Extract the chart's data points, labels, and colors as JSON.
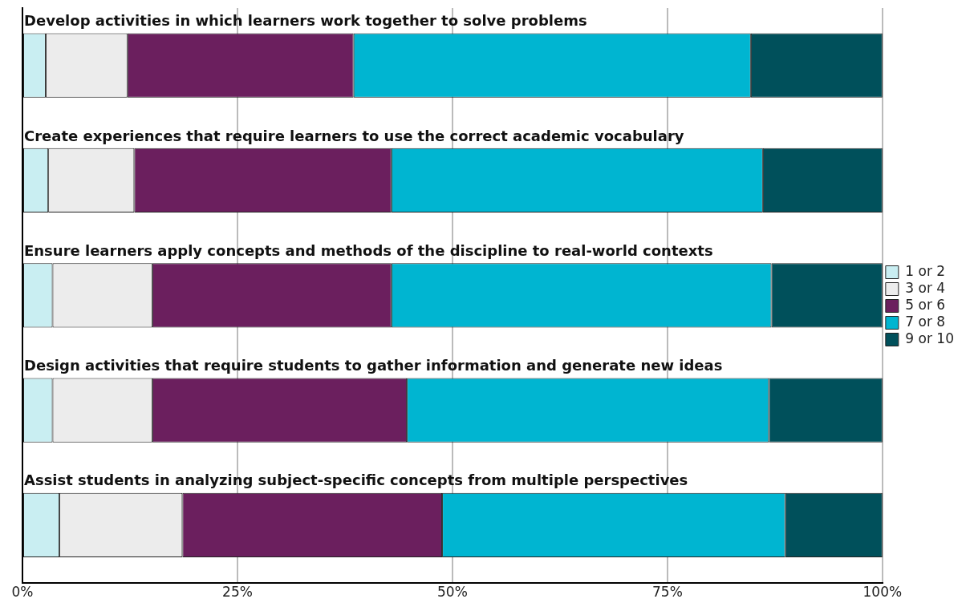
{
  "chart_data": {
    "type": "bar",
    "orientation": "horizontal",
    "stacked": true,
    "categories": [
      "Develop activities in which learners work together to solve problems",
      "Create experiences that require learners to use the correct academic vocabulary",
      "Ensure learners apply concepts and methods of the discipline to real-world contexts",
      "Design activities that require students to gather information and generate new ideas",
      "Assist students in analyzing subject-specific concepts from multiple perspectives"
    ],
    "series": [
      {
        "name": "1 or 2",
        "color": "#c9eef2",
        "values": [
          2.7,
          3.0,
          3.5,
          3.5,
          4.3
        ]
      },
      {
        "name": "3 or 4",
        "color": "#ececec",
        "values": [
          9.5,
          10.0,
          11.6,
          11.6,
          14.3
        ]
      },
      {
        "name": "5 or 6",
        "color": "#6b1f5e",
        "values": [
          26.3,
          29.9,
          27.8,
          29.6,
          30.2
        ]
      },
      {
        "name": "7 or 8",
        "color": "#00b5d1",
        "values": [
          46.2,
          43.2,
          44.2,
          42.1,
          39.9
        ]
      },
      {
        "name": "9 or 10",
        "color": "#00505b",
        "values": [
          15.3,
          13.9,
          12.9,
          13.2,
          11.3
        ]
      }
    ],
    "xlim": [
      0,
      100
    ],
    "xticks": [
      {
        "value": 0,
        "label": "0%"
      },
      {
        "value": 25,
        "label": "25%"
      },
      {
        "value": 50,
        "label": "50%"
      },
      {
        "value": 75,
        "label": "75%"
      },
      {
        "value": 100,
        "label": "100%"
      }
    ],
    "grid": "x",
    "legend": "right"
  }
}
